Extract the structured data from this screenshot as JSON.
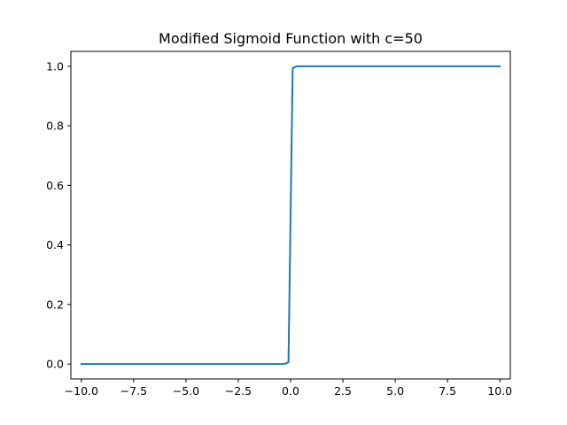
{
  "chart_data": {
    "type": "line",
    "title": "Modified Sigmoid Function with c=50",
    "xlabel": "",
    "ylabel": "",
    "xlim": [
      -10.5,
      10.5
    ],
    "ylim": [
      -0.05,
      1.05
    ],
    "xticks": [
      -10.0,
      -7.5,
      -5.0,
      -2.5,
      0.0,
      2.5,
      5.0,
      7.5,
      10.0
    ],
    "xtick_labels": [
      "−10.0",
      "−7.5",
      "−5.0",
      "−2.5",
      "0.0",
      "2.5",
      "5.0",
      "7.5",
      "10.0"
    ],
    "yticks": [
      0.0,
      0.2,
      0.4,
      0.6,
      0.8,
      1.0
    ],
    "ytick_labels": [
      "0.0",
      "0.2",
      "0.4",
      "0.6",
      "0.8",
      "1.0"
    ],
    "grid": false,
    "legend": "none",
    "series": [
      {
        "color": "#1f77b4",
        "x": [
          -10.0,
          -0.303,
          -0.101,
          0.101,
          0.303,
          10.0
        ],
        "y": [
          0.0,
          0.0,
          0.0063,
          0.9937,
          1.0,
          1.0
        ]
      }
    ]
  }
}
